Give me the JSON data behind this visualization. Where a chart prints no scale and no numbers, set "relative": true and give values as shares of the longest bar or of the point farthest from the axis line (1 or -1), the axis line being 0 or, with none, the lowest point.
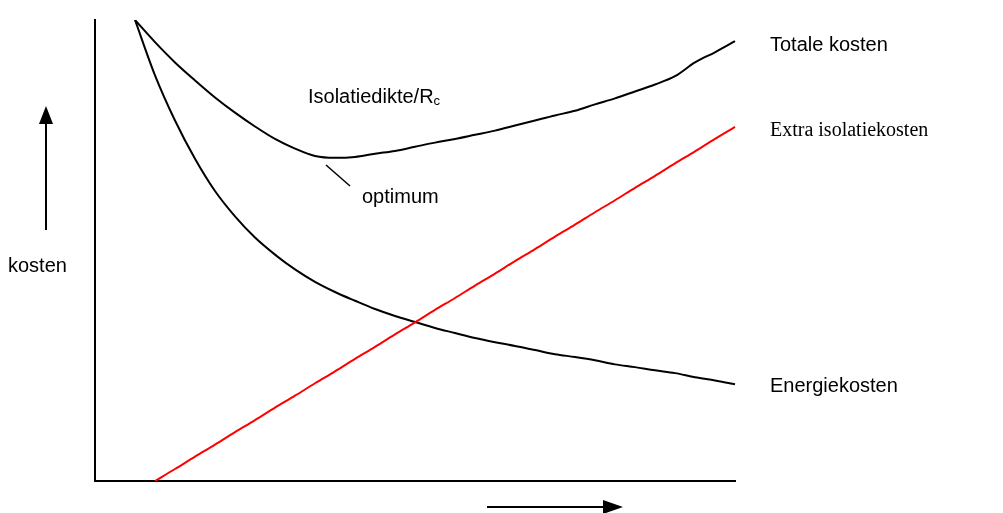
{
  "chart_data": {
    "type": "line",
    "relative": true,
    "legend": false,
    "grid": false,
    "marker": "none",
    "ylabel": "kosten",
    "categories": [
      null,
      null,
      null,
      null,
      null,
      null,
      null,
      null,
      null,
      null,
      null,
      null,
      null,
      null,
      null,
      null,
      null,
      null,
      null,
      null,
      null,
      null,
      null,
      null,
      null,
      null,
      null,
      null,
      null,
      null,
      null,
      null,
      null
    ],
    "series": [
      {
        "name": "Totale kosten",
        "color": "#000000",
        "values": [
          null,
          null,
          1.0,
          0.952,
          0.908,
          0.869,
          0.832,
          0.799,
          0.769,
          0.742,
          0.721,
          0.705,
          0.701,
          0.703,
          0.71,
          0.716,
          0.725,
          0.734,
          0.742,
          0.751,
          0.76,
          0.771,
          0.782,
          0.793,
          0.803,
          0.817,
          0.83,
          0.845,
          0.86,
          0.878,
          0.908,
          0.93,
          0.954
        ]
      },
      {
        "name": "Extra isolatiekosten",
        "color": "#ff0000",
        "values": [
          null,
          null,
          null,
          0,
          0.026,
          0.053,
          0.079,
          0.106,
          0.132,
          0.159,
          0.185,
          0.212,
          0.238,
          0.265,
          0.291,
          0.318,
          0.344,
          0.371,
          0.397,
          0.424,
          0.45,
          0.477,
          0.503,
          0.53,
          0.556,
          0.583,
          0.609,
          0.636,
          0.662,
          0.689,
          0.715,
          0.742,
          0.768
        ]
      },
      {
        "name": "Energiekosten",
        "color": "#000000",
        "values": [
          null,
          null,
          1.0,
          0.88,
          0.782,
          0.699,
          0.629,
          0.574,
          0.528,
          0.491,
          0.459,
          0.432,
          0.41,
          0.391,
          0.373,
          0.358,
          0.345,
          0.332,
          0.321,
          0.31,
          0.301,
          0.293,
          0.284,
          0.275,
          0.269,
          0.262,
          0.253,
          0.247,
          0.24,
          0.234,
          0.225,
          0.218,
          0.21
        ]
      }
    ],
    "annotations": [
      "Isolatiedikte/R$_{c}$",
      "optimum"
    ]
  }
}
